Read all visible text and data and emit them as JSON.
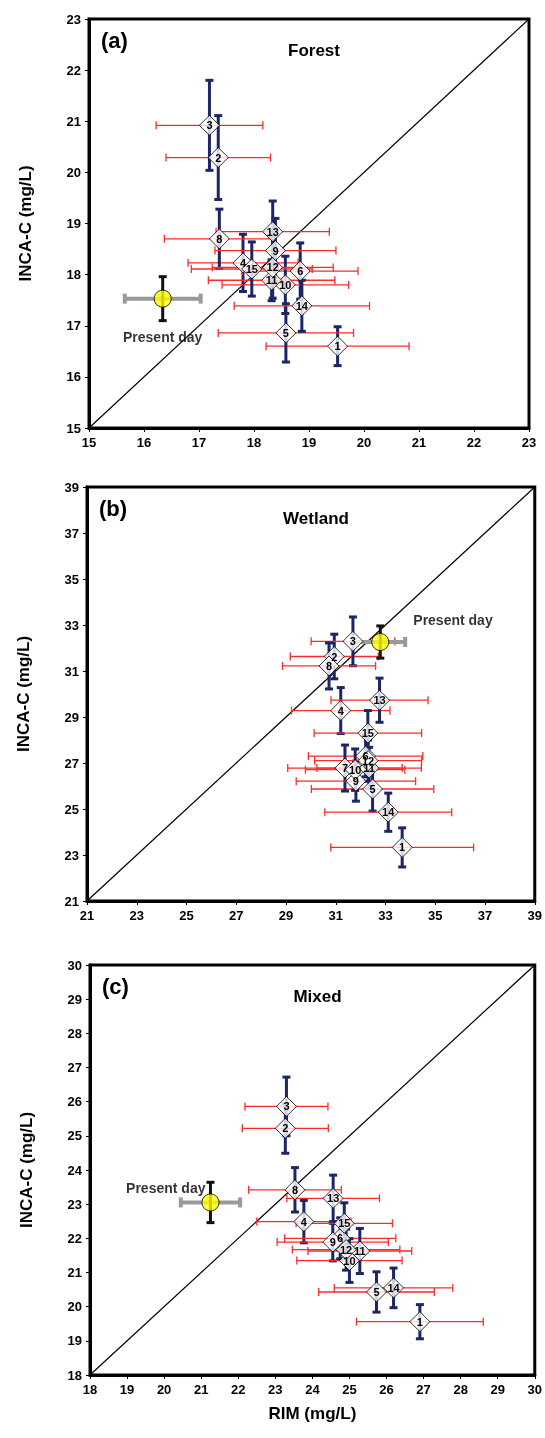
{
  "chart_data": [
    {
      "type": "scatter",
      "title": "Forest",
      "ylabel": "INCA-C (mg/L)",
      "xlim": [
        15,
        23
      ],
      "xticks": [
        15,
        16,
        17,
        18,
        19,
        20,
        21,
        22,
        23
      ],
      "ylim": [
        15,
        23
      ],
      "yticks": [
        15,
        16,
        17,
        18,
        19,
        20,
        21,
        22,
        23
      ],
      "annotations": [
        "(a)",
        {
          "text": "1",
          "x": 19.52,
          "y": 16.6
        },
        {
          "text": "2",
          "x": 17.35,
          "y": 20.29
        },
        {
          "text": "3",
          "x": 17.19,
          "y": 20.92
        },
        {
          "text": "4",
          "x": 17.8,
          "y": 18.23
        },
        {
          "text": "5",
          "x": 18.58,
          "y": 16.86
        },
        {
          "text": "6",
          "x": 18.84,
          "y": 18.07
        },
        {
          "text": "8",
          "x": 17.37,
          "y": 18.7
        },
        {
          "text": "9",
          "x": 18.39,
          "y": 18.47
        },
        {
          "text": "10",
          "x": 18.57,
          "y": 17.8
        },
        {
          "text": "11",
          "x": 18.32,
          "y": 17.89
        },
        {
          "text": "12",
          "x": 18.34,
          "y": 18.14
        },
        {
          "text": "13",
          "x": 18.34,
          "y": 18.84
        },
        {
          "text": "14",
          "x": 18.87,
          "y": 17.39
        },
        {
          "text": "15",
          "x": 17.96,
          "y": 18.11
        }
      ],
      "series": [
        {
          "type": "line",
          "color": "#000000",
          "marker": "none",
          "x": [
            15,
            23
          ],
          "values": [
            15,
            23
          ]
        },
        {
          "color": "#ffffff",
          "marker": "diamond",
          "x": [
            19.52,
            17.35,
            17.19,
            17.8,
            18.58,
            18.84,
            17.37,
            18.39,
            18.57,
            18.32,
            18.34,
            18.34,
            18.87,
            17.96
          ],
          "values": [
            16.6,
            20.29,
            20.92,
            18.23,
            16.86,
            18.07,
            18.7,
            18.47,
            17.8,
            17.89,
            18.14,
            18.84,
            17.39,
            18.11
          ],
          "errors": [
            0.38,
            0.82,
            0.88,
            0.56,
            0.57,
            0.55,
            0.58,
            0.63,
            0.56,
            0.4,
            0.6,
            0.6,
            0.5,
            0.53
          ],
          "xerrors": [
            1.3,
            0.95,
            0.97,
            1.0,
            1.23,
            1.05,
            1.0,
            1.1,
            1.15,
            1.15,
            1.1,
            1.03,
            1.23,
            1.1
          ]
        },
        {
          "name": "Present day",
          "color": "#ffff00",
          "marker": "circle",
          "x": [
            16.34
          ],
          "values": [
            17.53
          ],
          "errors": [
            0.43
          ],
          "xerrors": [
            0.69
          ]
        }
      ]
    },
    {
      "type": "scatter",
      "title": "Wetland",
      "ylabel": "INCA-C (mg/L)",
      "xlim": [
        21,
        39
      ],
      "xticks": [
        21,
        23,
        25,
        27,
        29,
        31,
        33,
        35,
        37,
        39
      ],
      "ylim": [
        21,
        39
      ],
      "yticks": [
        21,
        23,
        25,
        27,
        29,
        31,
        33,
        35,
        37,
        39
      ],
      "annotations": [
        "(b)",
        {
          "text": "1",
          "x": 33.67,
          "y": 23.33
        },
        {
          "text": "2",
          "x": 30.94,
          "y": 31.63
        },
        {
          "text": "3",
          "x": 31.69,
          "y": 32.29
        },
        {
          "text": "4",
          "x": 31.2,
          "y": 29.28
        },
        {
          "text": "5",
          "x": 32.48,
          "y": 25.87
        },
        {
          "text": "6",
          "x": 32.2,
          "y": 27.3
        },
        {
          "text": "7",
          "x": 31.37,
          "y": 26.78
        },
        {
          "text": "8",
          "x": 30.73,
          "y": 31.22
        },
        {
          "text": "9",
          "x": 31.81,
          "y": 26.21
        },
        {
          "text": "10",
          "x": 31.78,
          "y": 26.71
        },
        {
          "text": "11",
          "x": 32.34,
          "y": 26.78
        },
        {
          "text": "12",
          "x": 32.3,
          "y": 27.1
        },
        {
          "text": "13",
          "x": 32.76,
          "y": 29.73
        },
        {
          "text": "14",
          "x": 33.11,
          "y": 24.86
        },
        {
          "text": "15",
          "x": 32.29,
          "y": 28.3
        }
      ],
      "series": [
        {
          "type": "line",
          "color": "#000000",
          "marker": "none",
          "x": [
            21,
            39
          ],
          "values": [
            21,
            39
          ]
        },
        {
          "color": "#ffffff",
          "marker": "diamond",
          "x": [
            33.67,
            30.94,
            31.69,
            31.2,
            32.48,
            32.2,
            31.37,
            30.73,
            31.81,
            31.78,
            32.34,
            32.3,
            32.76,
            33.11,
            32.29
          ],
          "values": [
            23.33,
            31.63,
            32.29,
            29.28,
            25.87,
            27.3,
            26.78,
            31.22,
            26.21,
            26.71,
            26.78,
            27.1,
            29.73,
            24.86,
            28.3
          ],
          "errors": [
            0.85,
            0.97,
            1.06,
            1.0,
            0.96,
            0.9,
            1.0,
            1.0,
            0.87,
            0.9,
            0.9,
            0.9,
            0.96,
            0.83,
            0.98
          ],
          "xerrors": [
            2.87,
            1.77,
            1.68,
            1.98,
            2.46,
            2.3,
            2.3,
            1.87,
            2.4,
            2.0,
            2.1,
            2.15,
            1.95,
            2.55,
            2.16
          ]
        },
        {
          "name": "Present day",
          "color": "#ffff00",
          "marker": "circle",
          "x": [
            32.79
          ],
          "values": [
            32.26
          ],
          "errors": [
            0.7
          ],
          "xerrors": [
            1.0
          ]
        }
      ]
    },
    {
      "type": "scatter",
      "title": "Mixed",
      "xlabel": "RIM (mg/L)",
      "ylabel": "INCA-C (mg/L)",
      "xlim": [
        18,
        30
      ],
      "xticks": [
        18,
        19,
        20,
        21,
        22,
        23,
        24,
        25,
        26,
        27,
        28,
        29,
        30
      ],
      "ylim": [
        18,
        30
      ],
      "yticks": [
        18,
        19,
        20,
        21,
        22,
        23,
        24,
        25,
        26,
        27,
        28,
        29,
        30
      ],
      "annotations": [
        "(c)",
        {
          "text": "1",
          "x": 26.9,
          "y": 19.56
        },
        {
          "text": "2",
          "x": 23.27,
          "y": 25.22
        },
        {
          "text": "3",
          "x": 23.3,
          "y": 25.86
        },
        {
          "text": "4",
          "x": 23.77,
          "y": 22.49
        },
        {
          "text": "5",
          "x": 25.73,
          "y": 20.43
        },
        {
          "text": "6",
          "x": 24.75,
          "y": 22.0
        },
        {
          "text": "8",
          "x": 23.53,
          "y": 23.42
        },
        {
          "text": "9",
          "x": 24.55,
          "y": 21.89
        },
        {
          "text": "10",
          "x": 25.0,
          "y": 21.35
        },
        {
          "text": "11",
          "x": 25.28,
          "y": 21.63
        },
        {
          "text": "12",
          "x": 24.91,
          "y": 21.67
        },
        {
          "text": "13",
          "x": 24.56,
          "y": 23.17
        },
        {
          "text": "14",
          "x": 26.19,
          "y": 20.55
        },
        {
          "text": "15",
          "x": 24.86,
          "y": 22.44
        }
      ],
      "series": [
        {
          "type": "line",
          "color": "#000000",
          "marker": "none",
          "x": [
            18,
            30
          ],
          "values": [
            18,
            30
          ]
        },
        {
          "color": "#ffffff",
          "marker": "diamond",
          "x": [
            26.9,
            23.27,
            23.3,
            23.77,
            25.73,
            24.75,
            23.53,
            24.55,
            25.0,
            25.28,
            24.91,
            24.56,
            26.19,
            24.86
          ],
          "values": [
            19.56,
            25.22,
            25.86,
            22.49,
            20.43,
            22.0,
            23.42,
            21.89,
            21.35,
            21.63,
            21.67,
            23.17,
            20.55,
            22.44
          ],
          "errors": [
            0.5,
            0.73,
            0.86,
            0.62,
            0.59,
            0.6,
            0.65,
            0.55,
            0.64,
            0.66,
            0.6,
            0.68,
            0.58,
            0.6
          ],
          "xerrors": [
            1.71,
            1.16,
            1.12,
            1.27,
            1.56,
            1.5,
            1.25,
            1.5,
            1.42,
            1.4,
            1.45,
            1.25,
            1.6,
            1.3
          ]
        },
        {
          "name": "Present day",
          "color": "#ffff00",
          "marker": "circle",
          "x": [
            21.25
          ],
          "values": [
            23.05
          ],
          "errors": [
            0.59
          ],
          "xerrors": [
            0.8
          ]
        }
      ]
    }
  ]
}
